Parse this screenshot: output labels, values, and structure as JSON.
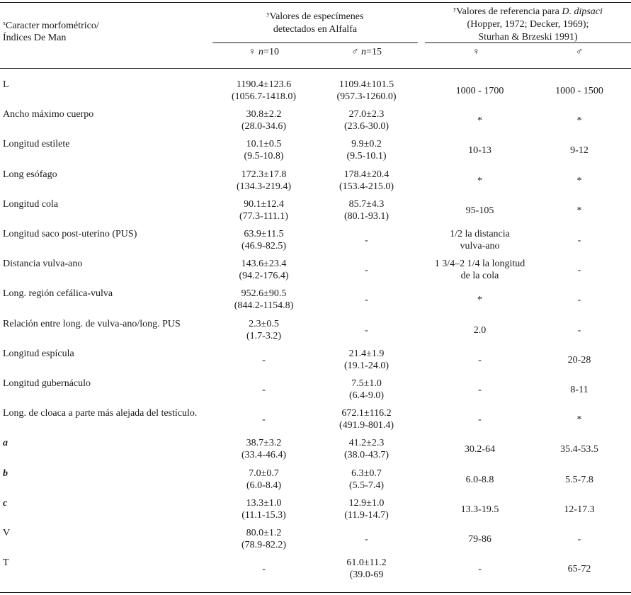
{
  "headers": {
    "char_sup": "x",
    "char_line1": "Caracter morfométrico/",
    "char_line2": "Índices De Man",
    "spec_sup": "y",
    "spec_line1": "Valores de especímenes",
    "spec_line2": "detectados en Alfalfa",
    "ref_sup": "y",
    "ref_line1_pre": "Valores de referencia para ",
    "ref_line1_species": "D. dipsaci",
    "ref_line2": "(Hopper, 1972;  Decker, 1969);",
    "ref_line3": "Sturhan & Brzeski 1991)",
    "sub_female_spec_sym": "♀",
    "sub_female_spec_n": "n",
    "sub_female_spec_val": "=10",
    "sub_male_spec_sym": "♂",
    "sub_male_spec_n": "n",
    "sub_male_spec_val": "=15",
    "sub_female_ref": "♀",
    "sub_male_ref": "♂"
  },
  "rows": [
    {
      "label": "L",
      "italic": false,
      "f1": "1190.4±123.6",
      "f2": "(1056.7-1418.0)",
      "m1": "1109.4±101.5",
      "m2": "(957.3-1260.0)",
      "rf1": "1000 - 1700",
      "rf2": "",
      "rm": "1000 - 1500"
    },
    {
      "label": "Ancho máximo cuerpo",
      "italic": false,
      "f1": "30.8±2.2",
      "f2": "(28.0-34.6)",
      "m1": "27.0±2.3",
      "m2": "(23.6-30.0)",
      "rf1": "*",
      "rf2": "",
      "rm": "*"
    },
    {
      "label": "Longitud estilete",
      "italic": false,
      "f1": "10.1±0.5",
      "f2": "(9.5-10.8)",
      "m1": "9.9±0.2",
      "m2": "(9.5-10.1)",
      "rf1": "10-13",
      "rf2": "",
      "rm": "9-12"
    },
    {
      "label": "Long esófago",
      "italic": false,
      "f1": "172.3±17.8",
      "f2": "(134.3-219.4)",
      "m1": "178.4±20.4",
      "m2": "(153.4-215.0)",
      "rf1": "*",
      "rf2": "",
      "rm": "*"
    },
    {
      "label": "Longitud cola",
      "italic": false,
      "f1": "90.1±12.4",
      "f2": "(77.3-111.1)",
      "m1": "85.7±4.3",
      "m2": "(80.1-93.1)",
      "rf1": "95-105",
      "rf2": "",
      "rm": "*"
    },
    {
      "label": "Longitud saco post-uterino (PUS)",
      "italic": false,
      "f1": "63.9±11.5",
      "f2": "(46.9-82.5)",
      "m1": "-",
      "m2": "",
      "rf1": "1/2 la distancia",
      "rf2": "vulva-ano",
      "rm": "-"
    },
    {
      "label": "Distancia vulva-ano",
      "italic": false,
      "f1": "143.6±23.4",
      "f2": "(94.2-176.4)",
      "m1": "-",
      "m2": "",
      "rf1": "1 3/4–2 1/4 la longitud",
      "rf2": "de la cola",
      "rm": "-"
    },
    {
      "label": "Long. región cefálica-vulva",
      "italic": false,
      "f1": "952.6±90.5",
      "f2": "(844.2-1154.8)",
      "m1": "-",
      "m2": "",
      "rf1": "*",
      "rf2": "",
      "rm": "-"
    },
    {
      "label": "Relación entre long. de vulva-ano/long. PUS",
      "italic": false,
      "f1": "2.3±0.5",
      "f2": "(1.7-3.2)",
      "m1": "-",
      "m2": "",
      "rf1": "2.0",
      "rf2": "",
      "rm": "-"
    },
    {
      "label": "Longitud espícula",
      "italic": false,
      "f1": "-",
      "f2": "",
      "m1": "21.4±1.9",
      "m2": "(19.1-24.0)",
      "rf1": "-",
      "rf2": "",
      "rm": "20-28"
    },
    {
      "label": "Longitud gubernáculo",
      "italic": false,
      "f1": "-",
      "f2": "",
      "m1": "7.5±1.0",
      "m2": "(6.4-9.0)",
      "rf1": "-",
      "rf2": "",
      "rm": "8-11"
    },
    {
      "label": "Long. de cloaca a parte más alejada del testículo.",
      "italic": false,
      "f1": "-",
      "f2": "",
      "m1": "672.1±116.2",
      "m2": "(491.9-801.4)",
      "rf1": "-",
      "rf2": "",
      "rm": "*"
    },
    {
      "label": "a",
      "italic": true,
      "f1": "38.7±3.2",
      "f2": "(33.4-46.4)",
      "m1": "41.2±2.3",
      "m2": "(38.0-43.7)",
      "rf1": "30.2-64",
      "rf2": "",
      "rm": "35.4-53.5"
    },
    {
      "label": "b",
      "italic": true,
      "f1": "7.0±0.7",
      "f2": "(6.0-8.4)",
      "m1": "6.3±0.7",
      "m2": "(5.5-7.4)",
      "rf1": "6.0-8.8",
      "rf2": "",
      "rm": "5.5-7.8"
    },
    {
      "label": "c",
      "italic": true,
      "f1": "13.3±1.0",
      "f2": "(11.1-15.3)",
      "m1": "12.9±1.0",
      "m2": "(11.9-14.7)",
      "rf1": "13.3-19.5",
      "rf2": "",
      "rm": "12-17.3"
    },
    {
      "label": "V",
      "italic": false,
      "f1": "80.0±1.2",
      "f2": "(78.9-82.2)",
      "m1": "-",
      "m2": "",
      "rf1": "79-86",
      "rf2": "",
      "rm": "-"
    },
    {
      "label": "T",
      "italic": false,
      "f1": "-",
      "f2": "",
      "m1": "61.0±11.2",
      "m2": "(39.0-69",
      "rf1": "-",
      "rf2": "",
      "rm": "65-72"
    }
  ]
}
